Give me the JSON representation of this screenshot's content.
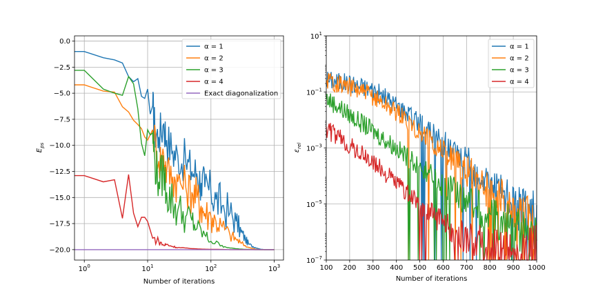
{
  "figure": {
    "left_xlabel": "Number of iterations",
    "left_ylabel": "E_ps",
    "right_xlabel": "Number of iterations",
    "right_ylabel": "ε_rel"
  },
  "chart_data": [
    {
      "type": "line",
      "xscale": "log",
      "xlabel": "Number of iterations",
      "ylabel": "E_ps",
      "xlim": [
        0.7,
        1400
      ],
      "ylim": [
        -21,
        0.5
      ],
      "xticks": [
        1,
        10,
        100,
        1000
      ],
      "xtick_labels": [
        "10^0",
        "10^1",
        "10^2",
        "10^3"
      ],
      "yticks": [
        0,
        -2.5,
        -5,
        -7.5,
        -10,
        -12.5,
        -15,
        -17.5,
        -20
      ],
      "ytick_labels": [
        "0.0",
        "−2.5",
        "−5.0",
        "−7.5",
        "−10.0",
        "−12.5",
        "−15.0",
        "−17.5",
        "−20.0"
      ],
      "grid": true,
      "legend_position": "top-right",
      "series": [
        {
          "name": "α = 1",
          "color": "#1f77b4",
          "x": [
            0.7,
            1,
            2,
            3,
            4,
            5,
            6,
            7,
            8,
            9,
            10,
            11,
            12,
            13,
            15,
            18,
            20,
            25,
            30,
            40,
            50,
            60,
            70,
            80,
            100,
            120,
            150,
            200,
            250,
            300,
            350,
            400,
            500,
            600,
            700,
            1000
          ],
          "y": [
            -1.0,
            -1.0,
            -1.6,
            -1.8,
            -2.1,
            -3.4,
            -3.9,
            -3.6,
            -5.3,
            -5.5,
            -4.6,
            -7.0,
            -6.2,
            -8.5,
            -9.2,
            -7.9,
            -9.5,
            -10.6,
            -11.0,
            -11.6,
            -12.5,
            -12.7,
            -13.6,
            -14.0,
            -14.5,
            -15.2,
            -15.8,
            -16.5,
            -17.3,
            -18.3,
            -19.0,
            -19.5,
            -19.8,
            -19.95,
            -20.0,
            -20.0
          ]
        },
        {
          "name": "α = 2",
          "color": "#ff7f0e",
          "x": [
            0.7,
            1,
            2,
            3,
            4,
            5,
            6,
            7,
            8,
            9,
            10,
            12,
            15,
            18,
            20,
            25,
            30,
            40,
            50,
            60,
            70,
            80,
            100,
            120,
            150,
            200,
            250,
            300,
            400,
            500,
            600,
            1000
          ],
          "y": [
            -4.2,
            -4.2,
            -4.8,
            -4.9,
            -6.3,
            -6.8,
            -7.6,
            -8.0,
            -8.4,
            -9.2,
            -9.5,
            -8.5,
            -11.5,
            -11.0,
            -12.5,
            -13.0,
            -13.5,
            -14.0,
            -14.5,
            -15.0,
            -15.8,
            -16.5,
            -16.8,
            -17.3,
            -17.8,
            -18.6,
            -19.0,
            -19.4,
            -19.8,
            -19.95,
            -20.0,
            -20.0
          ]
        },
        {
          "name": "α = 3",
          "color": "#2ca02c",
          "x": [
            0.7,
            1,
            2,
            3,
            4,
            5,
            6,
            7,
            8,
            9,
            10,
            11,
            12,
            13,
            15,
            18,
            20,
            25,
            30,
            40,
            50,
            60,
            80,
            100,
            150,
            200,
            300,
            500,
            1000
          ],
          "y": [
            -2.8,
            -2.8,
            -4.6,
            -5.0,
            -5.2,
            -3.4,
            -4.1,
            -6.5,
            -9.8,
            -11.0,
            -8.5,
            -9.0,
            -8.8,
            -11.5,
            -13.5,
            -12.5,
            -14.5,
            -15.5,
            -16.2,
            -16.8,
            -17.2,
            -18.0,
            -18.6,
            -19.2,
            -19.6,
            -19.85,
            -19.95,
            -20.0,
            -20.0
          ]
        },
        {
          "name": "α = 4",
          "color": "#d62728",
          "x": [
            0.7,
            1,
            2,
            3,
            4,
            5,
            6,
            7,
            8,
            9,
            10,
            12,
            15,
            18,
            20,
            25,
            30,
            40,
            50,
            70,
            100,
            150,
            200,
            300,
            500,
            1000
          ],
          "y": [
            -12.9,
            -12.9,
            -13.5,
            -13.3,
            -17.0,
            -12.8,
            -16.5,
            -17.8,
            -16.9,
            -16.9,
            -17.3,
            -18.9,
            -19.2,
            -19.6,
            -19.5,
            -19.7,
            -19.8,
            -19.85,
            -19.9,
            -19.95,
            -19.97,
            -19.98,
            -20.0,
            -20.0,
            -20.0,
            -20.0
          ]
        },
        {
          "name": "Exact diagonalization",
          "color": "#9467bd",
          "x": [
            0.7,
            1000
          ],
          "y": [
            -20.0,
            -20.0
          ]
        }
      ]
    },
    {
      "type": "line",
      "yscale": "log",
      "xlabel": "Number of iterations",
      "ylabel": "ε_rel",
      "xlim": [
        100,
        1000
      ],
      "ylim": [
        1e-07,
        10
      ],
      "xticks": [
        100,
        200,
        300,
        400,
        500,
        600,
        700,
        800,
        900,
        1000
      ],
      "xtick_labels": [
        "100",
        "200",
        "300",
        "400",
        "500",
        "600",
        "700",
        "800",
        "900",
        "1000"
      ],
      "yticks": [
        10,
        0.1,
        0.001,
        1e-05,
        1e-07
      ],
      "ytick_labels": [
        "10^1",
        "10^−1",
        "10^−3",
        "10^−5",
        "10^−7"
      ],
      "grid": true,
      "legend_position": "top-right",
      "series": [
        {
          "name": "α = 1",
          "color": "#1f77b4",
          "x": [
            100,
            200,
            300,
            400,
            500,
            600,
            700,
            800,
            900,
            1000
          ],
          "y": [
            0.28,
            0.2,
            0.12,
            0.035,
            0.008,
            0.0015,
            0.0003,
            6e-05,
            1e-05,
            3e-06
          ]
        },
        {
          "name": "α = 2",
          "color": "#ff7f0e",
          "x": [
            100,
            200,
            300,
            400,
            500,
            600,
            700,
            800,
            900,
            1000
          ],
          "y": [
            0.28,
            0.15,
            0.07,
            0.02,
            0.004,
            0.0008,
            0.00015,
            3e-05,
            6e-06,
            1.5e-06
          ]
        },
        {
          "name": "α = 3",
          "color": "#2ca02c",
          "x": [
            100,
            200,
            300,
            400,
            500,
            600,
            700,
            800,
            900,
            1000
          ],
          "y": [
            0.06,
            0.015,
            0.004,
            0.001,
            0.0002,
            5e-05,
            1.5e-05,
            4e-06,
            1.5e-06,
            8e-07
          ]
        },
        {
          "name": "α = 4",
          "color": "#d62728",
          "x": [
            100,
            200,
            300,
            400,
            500,
            600,
            700,
            800,
            900,
            1000
          ],
          "y": [
            0.005,
            0.0012,
            0.0003,
            6e-05,
            1e-05,
            2e-06,
            6e-07,
            3e-07,
            2e-07,
            2e-07
          ]
        }
      ]
    }
  ]
}
